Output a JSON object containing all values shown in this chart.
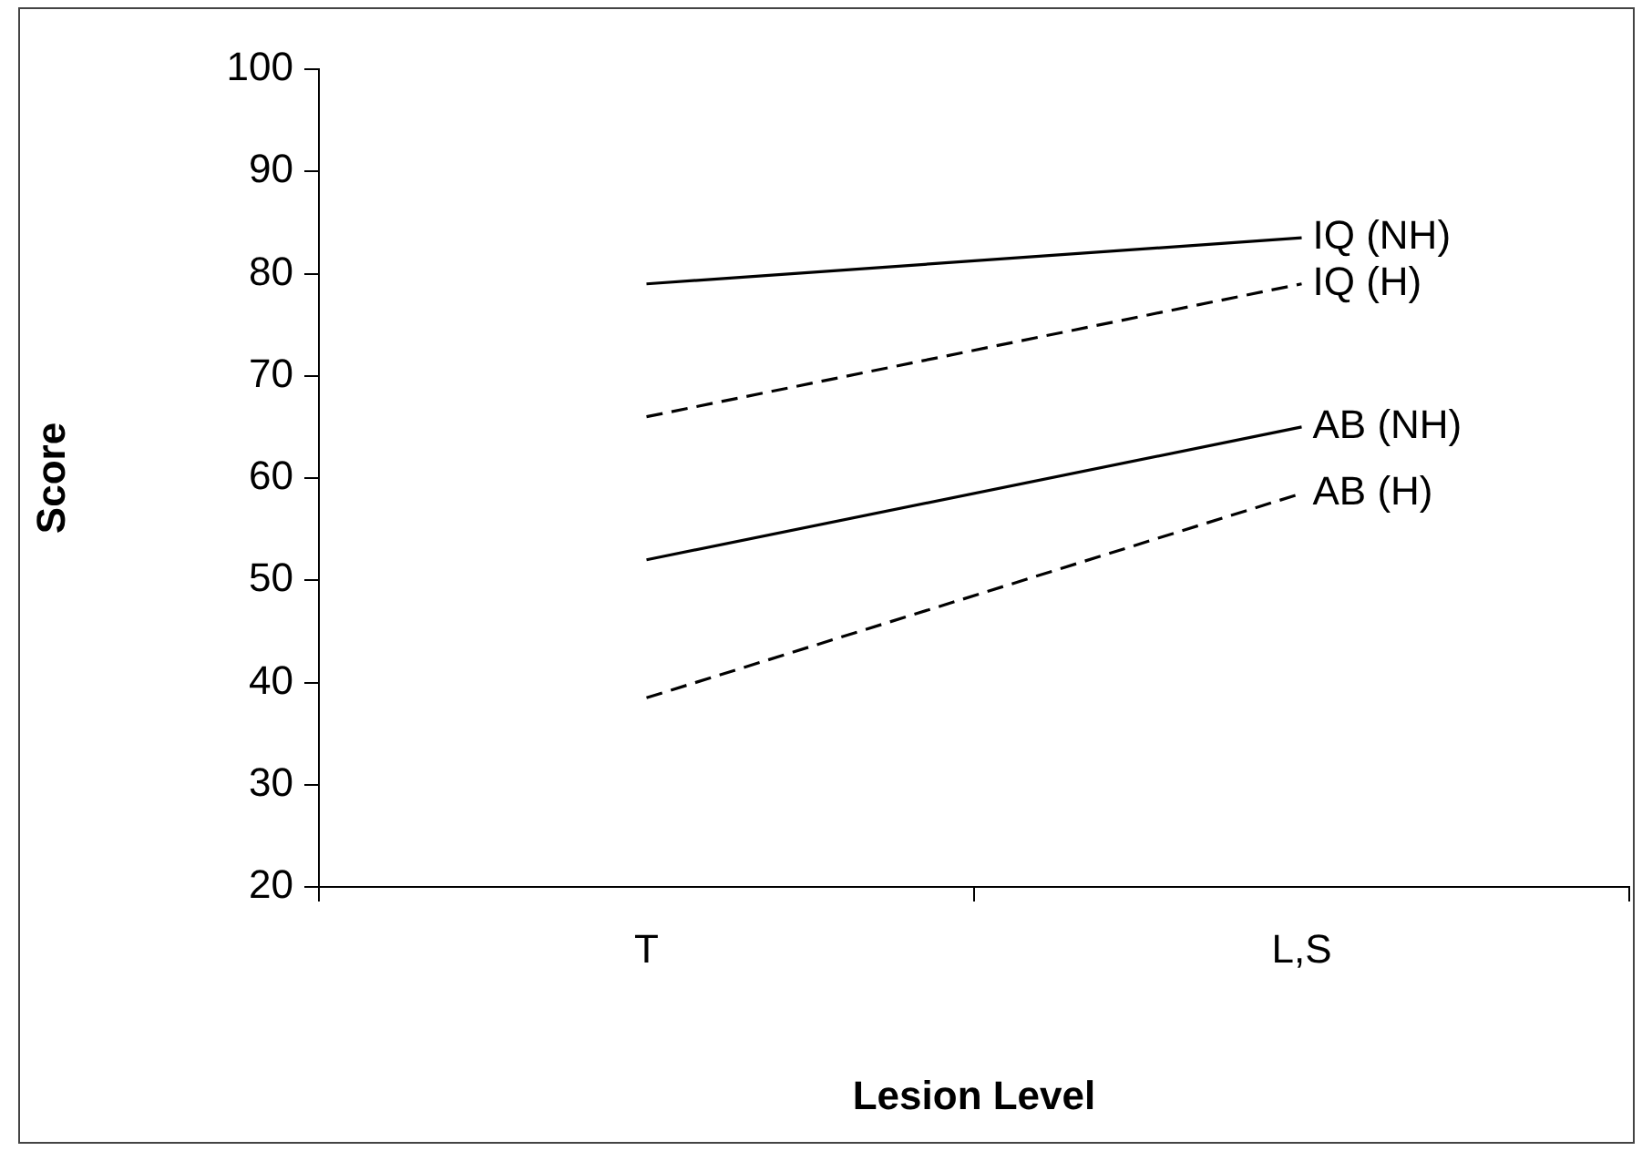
{
  "chart_data": {
    "type": "line",
    "xlabel": "Lesion Level",
    "ylabel": "Score",
    "categories": [
      "T",
      "L,S"
    ],
    "ylim": [
      20,
      100
    ],
    "yticks": [
      20,
      30,
      40,
      50,
      60,
      70,
      80,
      90,
      100
    ],
    "grid": false,
    "legend": false,
    "marker": "none",
    "series": [
      {
        "name": "IQ (NH)",
        "color": "#000000",
        "line_style": "solid",
        "values": [
          79,
          83.5
        ]
      },
      {
        "name": "IQ (H)",
        "color": "#000000",
        "line_style": "dashed",
        "values": [
          66,
          79
        ]
      },
      {
        "name": "AB (NH)",
        "color": "#000000",
        "line_style": "solid",
        "values": [
          52,
          65
        ]
      },
      {
        "name": "AB (H)",
        "color": "#000000",
        "line_style": "dashed",
        "values": [
          38.5,
          58.5
        ]
      }
    ]
  }
}
